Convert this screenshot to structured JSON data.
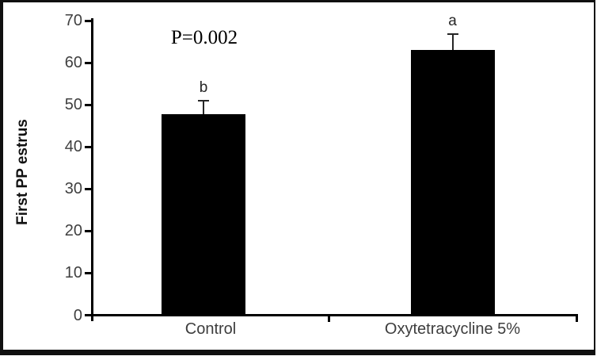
{
  "chart_data": {
    "type": "bar",
    "title": "",
    "categories": [
      "Control",
      "Oxytetracycline 5%"
    ],
    "values": [
      47.8,
      63
    ],
    "errors_plus": [
      3.2,
      3.8
    ],
    "bar_labels": [
      "b",
      "a"
    ],
    "annotation": "P=0.002",
    "ylabel": "First PP estrus",
    "xlabel": "",
    "yticks": [
      0,
      10,
      20,
      30,
      40,
      50,
      60,
      70
    ],
    "ylim": [
      0,
      70
    ],
    "bar_color": "#000000",
    "axis_color": "#000000",
    "tick_label_color": "#404040",
    "error_bar_direction": "plus-only",
    "grid": false,
    "legend": false
  }
}
